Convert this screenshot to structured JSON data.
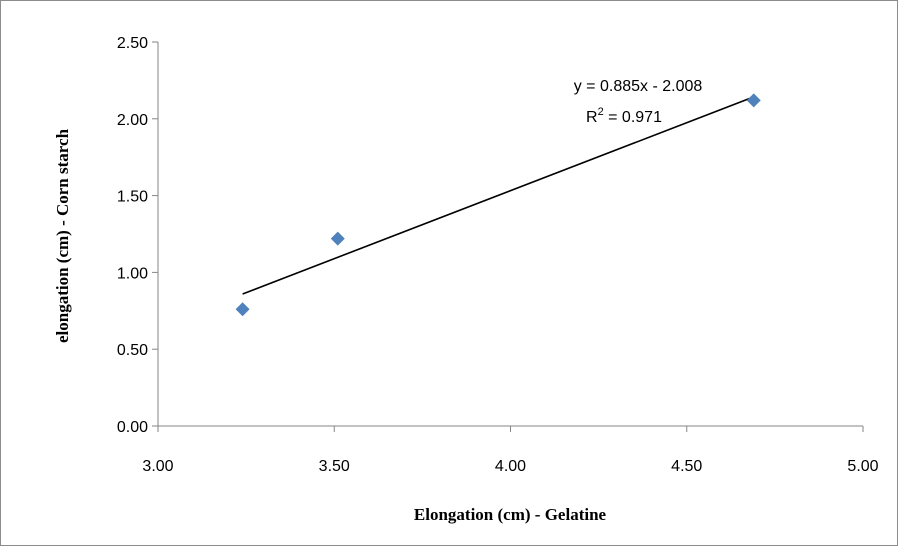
{
  "chart_data": {
    "type": "scatter",
    "xlabel": "Elongation (cm) - Gelatine",
    "ylabel": "elongation (cm) - Corn starch",
    "xlim": [
      3.0,
      5.0
    ],
    "ylim": [
      0.0,
      2.5
    ],
    "x_ticks": [
      "3.00",
      "3.50",
      "4.00",
      "4.50",
      "5.00"
    ],
    "y_ticks": [
      "0.00",
      "0.50",
      "1.00",
      "1.50",
      "2.00",
      "2.50"
    ],
    "grid": false,
    "legend": "none",
    "points": [
      {
        "x": 3.24,
        "y": 0.76
      },
      {
        "x": 3.51,
        "y": 1.22
      },
      {
        "x": 4.69,
        "y": 2.12
      }
    ],
    "trendline": {
      "slope": 0.885,
      "intercept": -2.008,
      "x_range": [
        3.24,
        4.69
      ],
      "equation_label": "y = 0.885x - 2.008",
      "r2_prefix": "R",
      "r2_sup": "2",
      "r2_suffix": " = 0.971"
    },
    "colors": {
      "marker": "#4f81bd",
      "trendline": "#000000",
      "axis": "#868686"
    }
  }
}
